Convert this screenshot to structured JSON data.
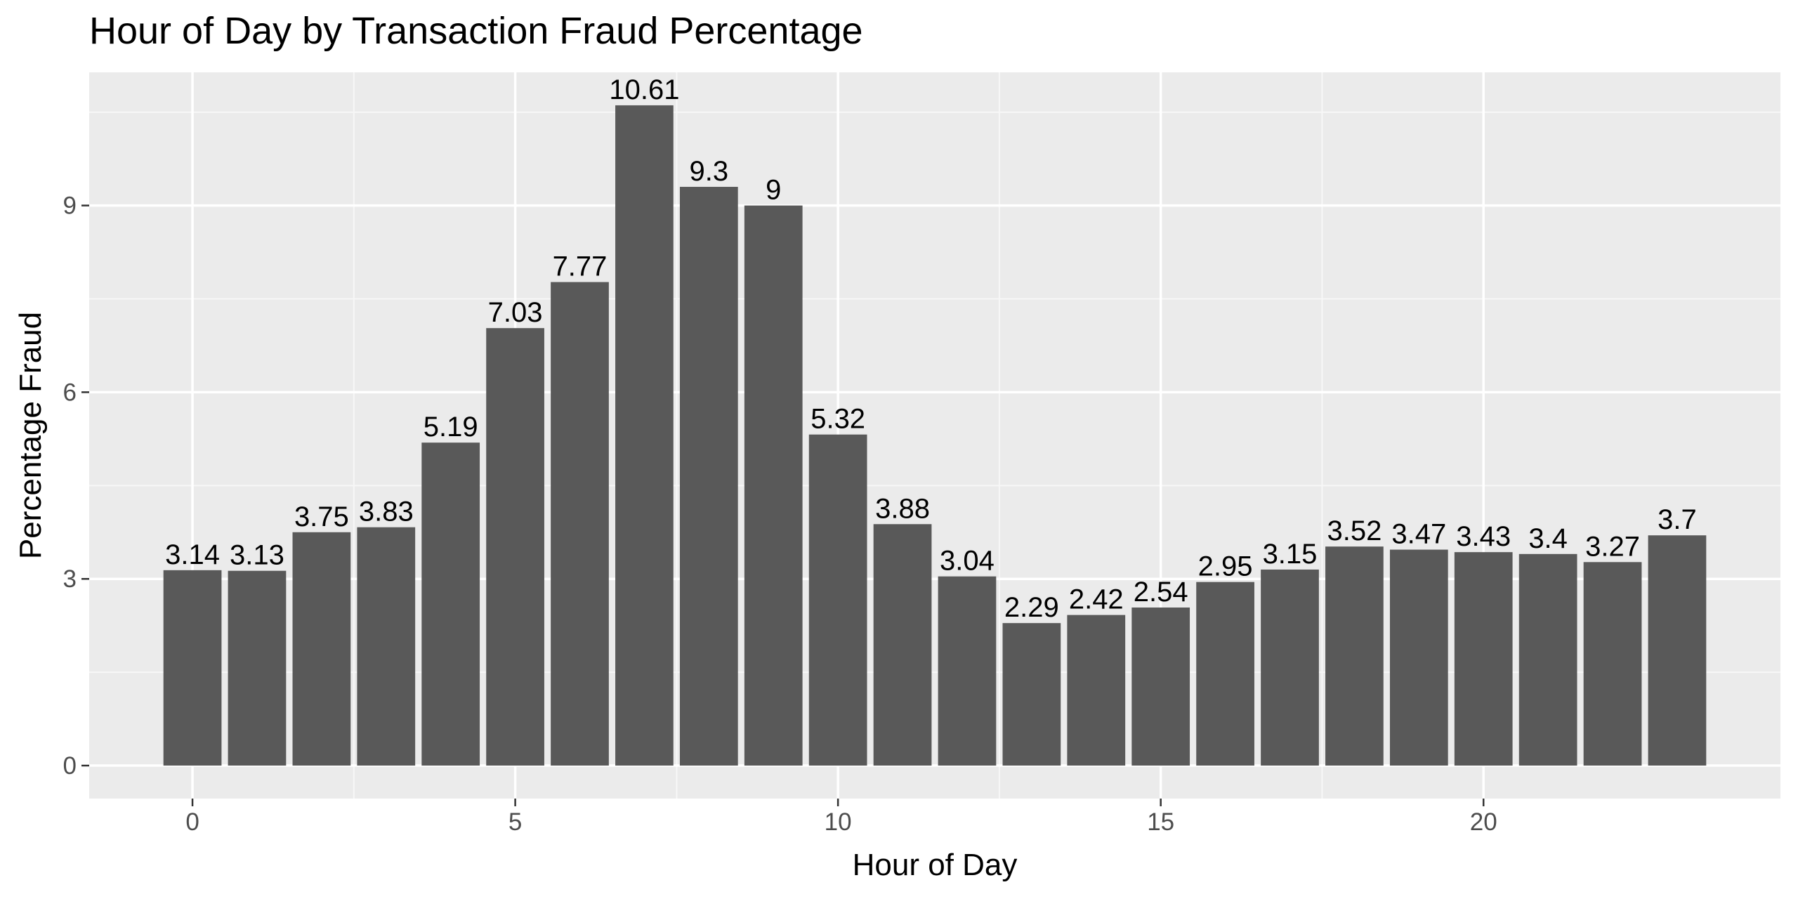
{
  "chart_data": {
    "type": "bar",
    "title": "Hour of Day by Transaction Fraud Percentage",
    "xlabel": "Hour of Day",
    "ylabel": "Percentage Fraud",
    "x": [
      0,
      1,
      2,
      3,
      4,
      5,
      6,
      7,
      8,
      9,
      10,
      11,
      12,
      13,
      14,
      15,
      16,
      17,
      18,
      19,
      20,
      21,
      22,
      23
    ],
    "values": [
      3.14,
      3.13,
      3.75,
      3.83,
      5.19,
      7.03,
      7.77,
      10.61,
      9.3,
      9,
      5.32,
      3.88,
      3.04,
      2.29,
      2.42,
      2.54,
      2.95,
      3.15,
      3.52,
      3.47,
      3.43,
      3.4,
      3.27,
      3.7
    ],
    "labels": [
      "3.14",
      "3.13",
      "3.75",
      "3.83",
      "5.19",
      "7.03",
      "7.77",
      "10.61",
      "9.3",
      "9",
      "5.32",
      "3.88",
      "3.04",
      "2.29",
      "2.42",
      "2.54",
      "2.95",
      "3.15",
      "3.52",
      "3.47",
      "3.43",
      "3.4",
      "3.27",
      "3.7"
    ],
    "xlim": [
      -1.6,
      24.6
    ],
    "ylim": [
      -0.53,
      11.14
    ],
    "x_ticks": [
      0,
      5,
      10,
      15,
      20
    ],
    "x_tick_labels": [
      "0",
      "5",
      "10",
      "15",
      "20"
    ],
    "y_ticks": [
      0,
      3,
      6,
      9
    ],
    "y_tick_labels": [
      "0",
      "3",
      "6",
      "9"
    ],
    "grid": true,
    "legend": "none",
    "colors": {
      "bar": "#595959",
      "panel": "#ebebeb",
      "grid_major": "#ffffff",
      "grid_minor": "#f7f7f7"
    }
  }
}
